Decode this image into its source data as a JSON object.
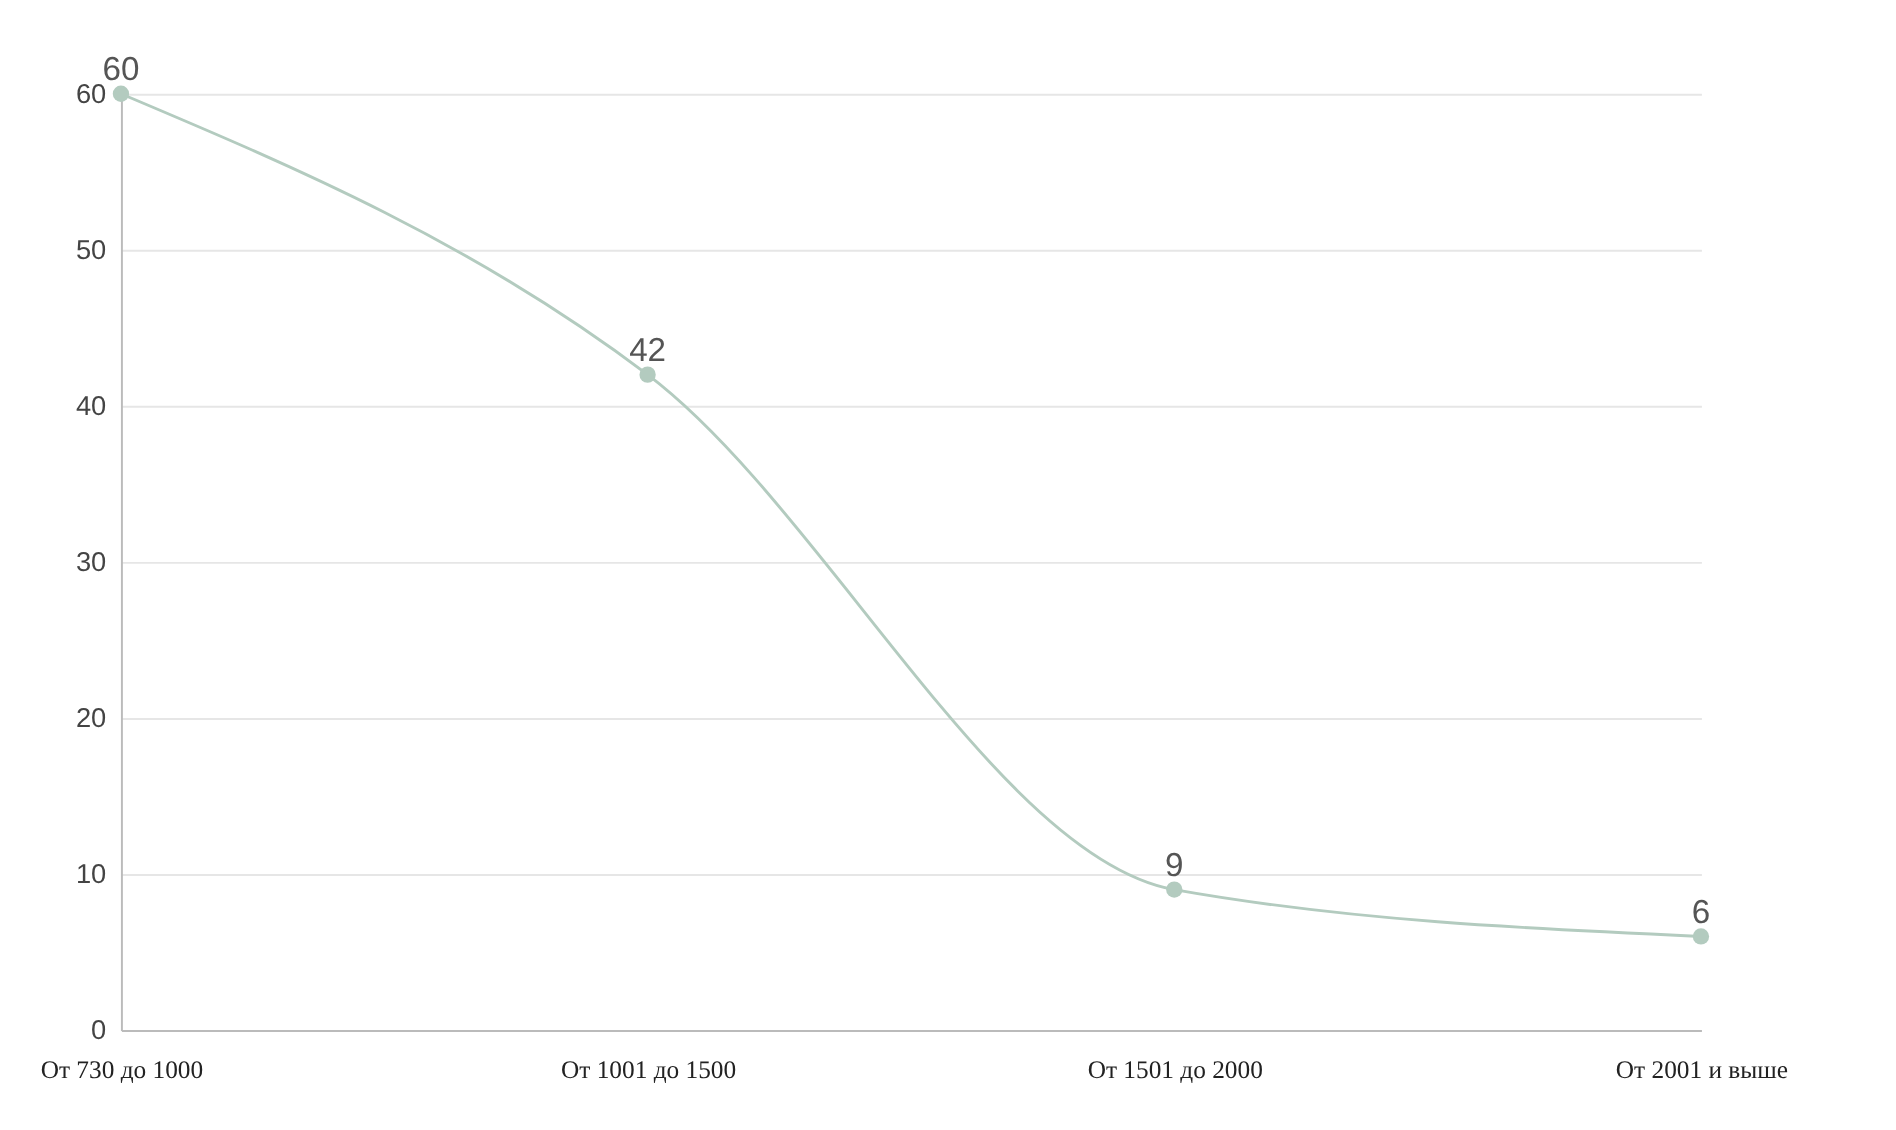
{
  "chart_data": {
    "type": "line",
    "categories": [
      "От 730 до 1000",
      "От 1001 до 1500",
      "От 1501 до 2000",
      "От 2001 и выше"
    ],
    "series": [
      {
        "color": "#b3cbbf",
        "values": [
          60,
          42,
          9,
          6
        ]
      }
    ],
    "ylim": [
      0,
      60
    ],
    "yticks": [
      0,
      10,
      20,
      30,
      40,
      50,
      60
    ],
    "grid": "y",
    "marker": "circle",
    "line_style": "solid",
    "data_labels": true
  }
}
